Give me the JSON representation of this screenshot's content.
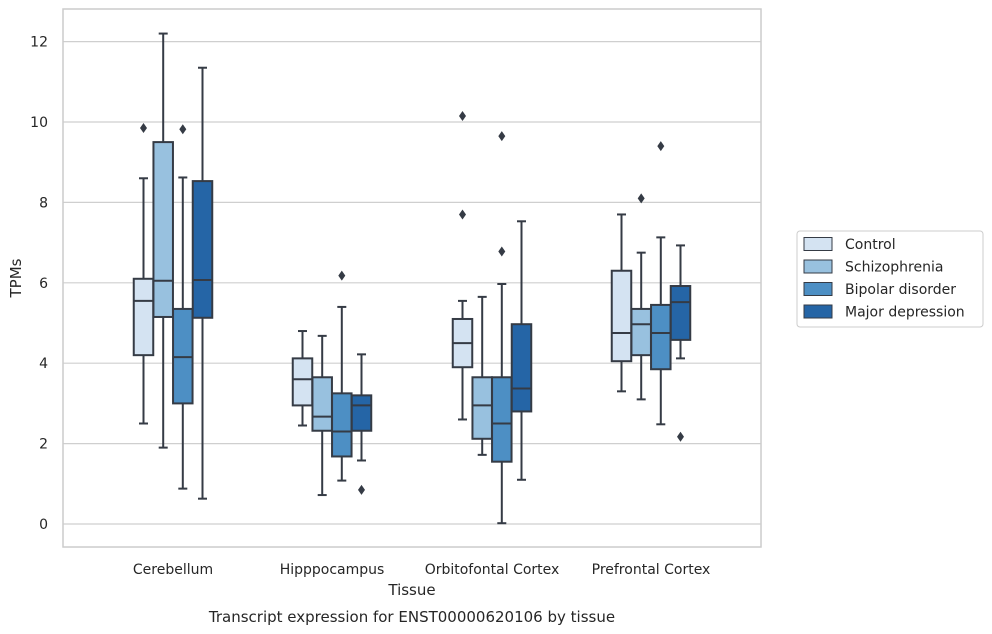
{
  "caption": "Transcript expression for ENST00000620106 by tissue",
  "colors": {
    "Control": "#d4e3f2",
    "Schizophrenia": "#98c1df",
    "Bipolar disorder": "#4d8fc4",
    "Major depression": "#2565a6",
    "box_edge": "#353b45",
    "grid": "#cfcfcf",
    "frame": "#cccccc"
  },
  "chart_data": {
    "type": "box",
    "title": "",
    "xlabel": "Tissue",
    "ylabel": "TPMs",
    "ylim": [
      -0.6,
      12.8
    ],
    "yticks": [
      0,
      2,
      4,
      6,
      8,
      10,
      12
    ],
    "grid": true,
    "legend_position": "right",
    "categories": [
      "Cerebellum",
      "Hipppocampus",
      "Orbitofontal Cortex",
      "Prefrontal Cortex"
    ],
    "series": [
      {
        "name": "Control",
        "boxes": [
          {
            "whislo": 2.5,
            "q1": 4.2,
            "med": 5.55,
            "q3": 6.1,
            "whishi": 8.6,
            "fliers": [
              9.85
            ]
          },
          {
            "whislo": 2.45,
            "q1": 2.95,
            "med": 3.6,
            "q3": 4.12,
            "whishi": 4.8,
            "fliers": []
          },
          {
            "whislo": 2.6,
            "q1": 3.9,
            "med": 4.5,
            "q3": 5.1,
            "whishi": 5.55,
            "fliers": [
              7.7,
              10.15
            ]
          },
          {
            "whislo": 3.3,
            "q1": 4.05,
            "med": 4.75,
            "q3": 6.3,
            "whishi": 7.7,
            "fliers": []
          }
        ]
      },
      {
        "name": "Schizophrenia",
        "boxes": [
          {
            "whislo": 1.9,
            "q1": 5.15,
            "med": 6.05,
            "q3": 9.5,
            "whishi": 12.2,
            "fliers": []
          },
          {
            "whislo": 0.72,
            "q1": 2.32,
            "med": 2.67,
            "q3": 3.65,
            "whishi": 4.68,
            "fliers": []
          },
          {
            "whislo": 1.72,
            "q1": 2.12,
            "med": 2.95,
            "q3": 3.65,
            "whishi": 5.65,
            "fliers": []
          },
          {
            "whislo": 3.1,
            "q1": 4.2,
            "med": 4.97,
            "q3": 5.35,
            "whishi": 6.75,
            "fliers": [
              8.1
            ]
          }
        ]
      },
      {
        "name": "Bipolar disorder",
        "boxes": [
          {
            "whislo": 0.88,
            "q1": 3.0,
            "med": 4.15,
            "q3": 5.35,
            "whishi": 8.62,
            "fliers": [
              9.82
            ]
          },
          {
            "whislo": 1.08,
            "q1": 1.68,
            "med": 2.3,
            "q3": 3.25,
            "whishi": 5.4,
            "fliers": [
              6.18
            ]
          },
          {
            "whislo": 0.02,
            "q1": 1.55,
            "med": 2.5,
            "q3": 3.65,
            "whishi": 5.97,
            "fliers": [
              6.78,
              9.65
            ]
          },
          {
            "whislo": 2.48,
            "q1": 3.85,
            "med": 4.75,
            "q3": 5.45,
            "whishi": 7.13,
            "fliers": [
              9.4
            ]
          }
        ]
      },
      {
        "name": "Major depression",
        "boxes": [
          {
            "whislo": 0.63,
            "q1": 5.13,
            "med": 6.07,
            "q3": 8.53,
            "whishi": 11.35,
            "fliers": []
          },
          {
            "whislo": 1.58,
            "q1": 2.32,
            "med": 2.95,
            "q3": 3.2,
            "whishi": 4.22,
            "fliers": [
              0.85
            ]
          },
          {
            "whislo": 1.1,
            "q1": 2.8,
            "med": 3.37,
            "q3": 4.97,
            "whishi": 7.53,
            "fliers": []
          },
          {
            "whislo": 4.12,
            "q1": 4.58,
            "med": 5.52,
            "q3": 5.92,
            "whishi": 6.93,
            "fliers": [
              2.17
            ]
          }
        ]
      }
    ]
  }
}
